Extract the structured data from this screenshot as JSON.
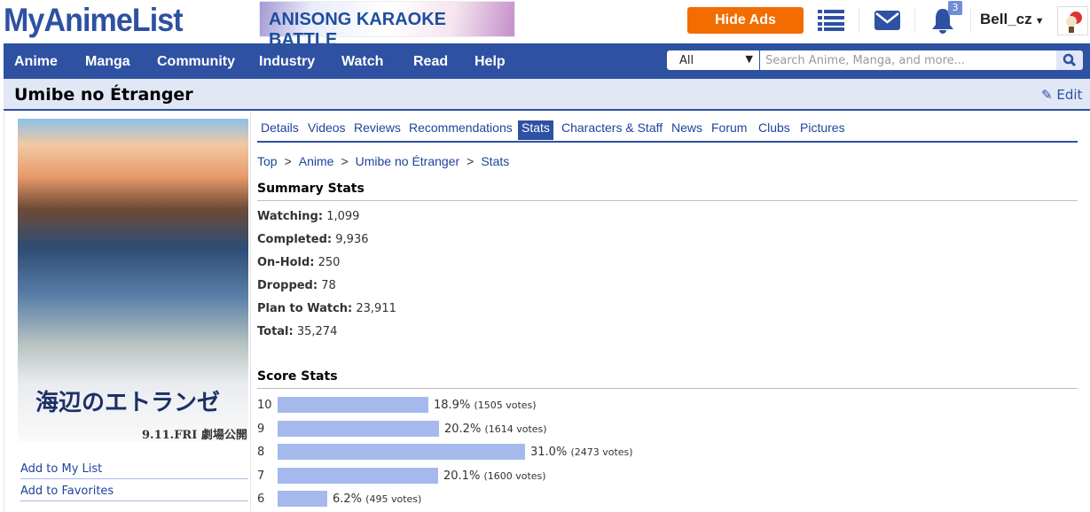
{
  "header": {
    "logo": "MyAnimeList",
    "banner": "ANISONG KARAOKE BATTLE",
    "hide_ads": "Hide Ads",
    "notification_count": "3",
    "username": "Bell_cz",
    "icons": [
      "list-icon",
      "mail-icon",
      "bell-icon",
      "caret-down-icon",
      "avatar"
    ]
  },
  "nav": {
    "items": [
      "Anime",
      "Manga",
      "Community",
      "Industry",
      "Watch",
      "Read",
      "Help"
    ],
    "search_category": "All",
    "search_placeholder": "Search Anime, Manga, and more..."
  },
  "page": {
    "title": "Umibe no Étranger",
    "edit": "Edit"
  },
  "sidebar": {
    "poster_text": "海辺のエトランゼ",
    "poster_date": "9.11.FRI 劇場公開",
    "links": [
      "Add to My List",
      "Add to Favorites"
    ]
  },
  "tabs": {
    "items": [
      "Details",
      "Videos",
      "Reviews",
      "Recommendations",
      "Stats",
      "Characters & Staff",
      "News",
      "Forum",
      "Clubs",
      "Pictures"
    ],
    "active": "Stats"
  },
  "breadcrumb": [
    "Top",
    "Anime",
    "Umibe no Étranger",
    "Stats"
  ],
  "summary": {
    "heading": "Summary Stats",
    "rows": [
      {
        "label": "Watching:",
        "value": "1,099"
      },
      {
        "label": "Completed:",
        "value": "9,936"
      },
      {
        "label": "On-Hold:",
        "value": "250"
      },
      {
        "label": "Dropped:",
        "value": "78"
      },
      {
        "label": "Plan to Watch:",
        "value": "23,911"
      },
      {
        "label": "Total:",
        "value": "35,274"
      }
    ]
  },
  "scores": {
    "heading": "Score Stats",
    "bar_color": "#a5b9ed",
    "rows": [
      {
        "score": "10",
        "percent": 18.9,
        "percent_label": "18.9%",
        "votes": "(1505 votes)"
      },
      {
        "score": "9",
        "percent": 20.2,
        "percent_label": "20.2%",
        "votes": "(1614 votes)"
      },
      {
        "score": "8",
        "percent": 31.0,
        "percent_label": "31.0%",
        "votes": "(2473 votes)"
      },
      {
        "score": "7",
        "percent": 20.1,
        "percent_label": "20.1%",
        "votes": "(1600 votes)"
      },
      {
        "score": "6",
        "percent": 6.2,
        "percent_label": "6.2%",
        "votes": "(495 votes)"
      }
    ]
  },
  "colors": {
    "brand": "#2e51a2",
    "hide_ads": "#f26c00",
    "title_bar": "#e1e7f5"
  }
}
